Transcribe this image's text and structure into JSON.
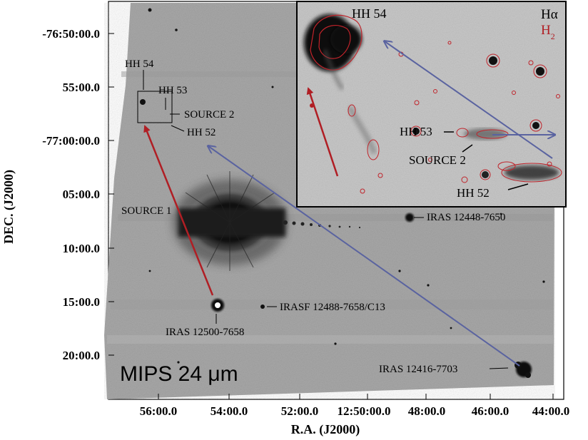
{
  "figure": {
    "panel_label": "MIPS 24 μm",
    "x_axis_label": "R.A. (J2000)",
    "y_axis_label": "DEC. (J2000)",
    "x_ticks": [
      "56:00.0",
      "54:00.0",
      "52:00.0",
      "12:50:00.0",
      "48:00.0",
      "46:00.0",
      "44:00.0"
    ],
    "y_ticks": [
      "-76:50:00.0",
      "55:00.0",
      "-77:00:00.0",
      "05:00.0",
      "10:00.0",
      "15:00.0",
      "20:00.0"
    ],
    "source_labels": {
      "hh54": "HH 54",
      "hh53": "HH 53",
      "source2": "SOURCE 2",
      "hh52": "HH 52",
      "source1": "SOURCE 1",
      "iras12448": "IRAS 12448-7650",
      "irasf12488": "IRASF 12488-7658/C13",
      "iras12500": "IRAS 12500-7658",
      "iras12416": "IRAS 12416-7703"
    },
    "inset": {
      "halpha_label": "Hα",
      "h2_label": "H2",
      "hh54": "HH 54",
      "hh53": "HH 53",
      "source2": "SOURCE 2",
      "hh52": "HH 52"
    },
    "colors": {
      "red_arrow": "#b01e24",
      "blue_arrow": "#5a63a0",
      "contour": "#c0232a",
      "background_image": "#a6a6a6"
    }
  }
}
